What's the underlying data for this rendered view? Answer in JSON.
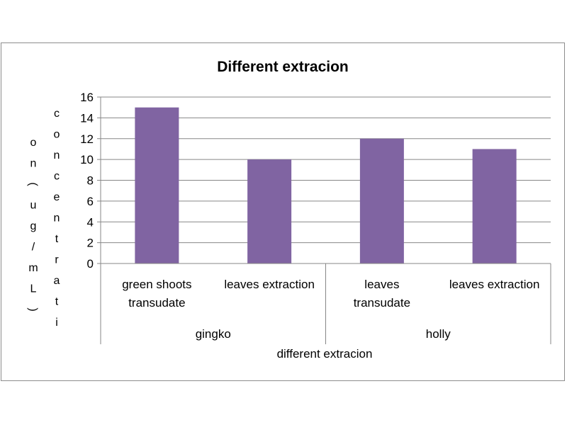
{
  "chart_data": {
    "type": "bar",
    "title": "Different extracion",
    "xlabel": "different extracion",
    "ylabel_lines": [
      "concentrati",
      "on(ug/mL)"
    ],
    "ylim": [
      0,
      16
    ],
    "yticks": [
      0,
      2,
      4,
      6,
      8,
      10,
      12,
      14,
      16
    ],
    "grid": true,
    "legend": "none",
    "bar_color": "#8064a2",
    "grid_color": "#878787",
    "groups": [
      {
        "name": "gingko",
        "categories": [
          "green shoots transudate",
          "leaves extraction"
        ]
      },
      {
        "name": "holly",
        "categories": [
          "leaves transudate",
          "leaves extraction"
        ]
      }
    ],
    "categories": [
      "green shoots transudate",
      "leaves extraction",
      "leaves transudate",
      "leaves extraction"
    ],
    "category_label_lines": [
      [
        "green shoots",
        "transudate"
      ],
      [
        "leaves extraction"
      ],
      [
        "leaves",
        "transudate"
      ],
      [
        "leaves extraction"
      ]
    ],
    "values": [
      15,
      10,
      12,
      11
    ]
  }
}
